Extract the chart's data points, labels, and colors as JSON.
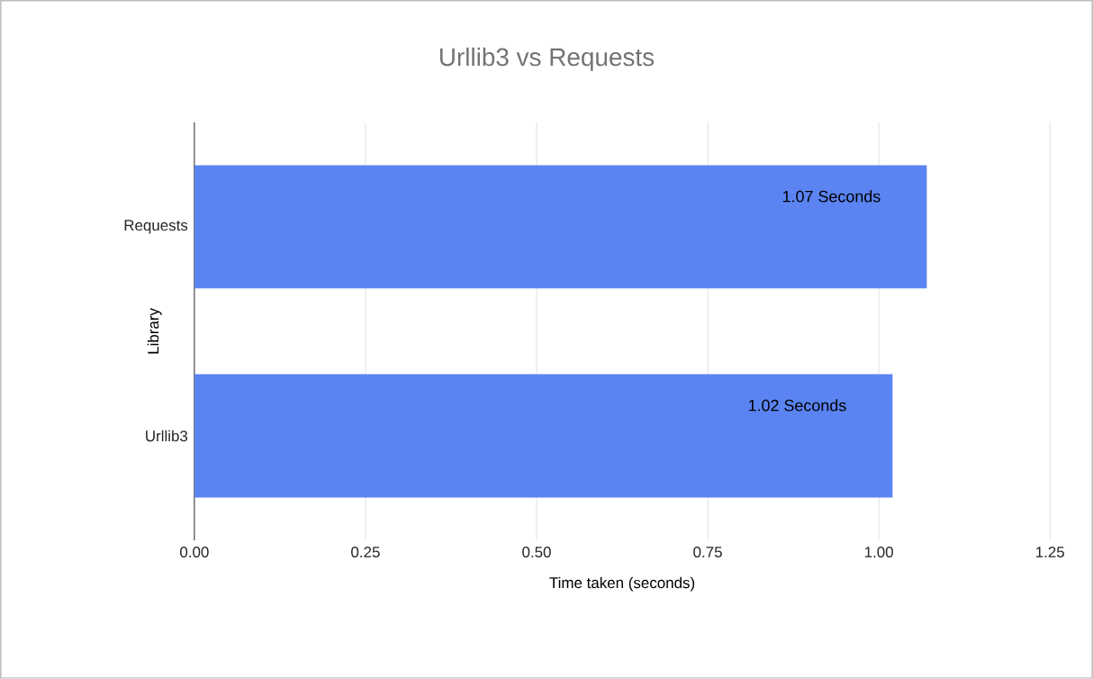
{
  "chart_data": {
    "type": "bar",
    "orientation": "horizontal",
    "title": "Urllib3 vs Requests",
    "xlabel": "Time taken (seconds)",
    "ylabel": "Library",
    "categories": [
      "Requests",
      "Urllib3"
    ],
    "values": [
      1.07,
      1.02
    ],
    "value_labels": [
      "1.07 Seconds",
      "1.02 Seconds"
    ],
    "color": "#5b84f2",
    "xlim": [
      0,
      1.25
    ],
    "xticks": [
      {
        "value": 0,
        "label": "0.00"
      },
      {
        "value": 0.25,
        "label": "0.25"
      },
      {
        "value": 0.5,
        "label": "0.50"
      },
      {
        "value": 0.75,
        "label": "0.75"
      },
      {
        "value": 1,
        "label": "1.00"
      },
      {
        "value": 1.25,
        "label": "1.25"
      }
    ],
    "grid": "x"
  }
}
